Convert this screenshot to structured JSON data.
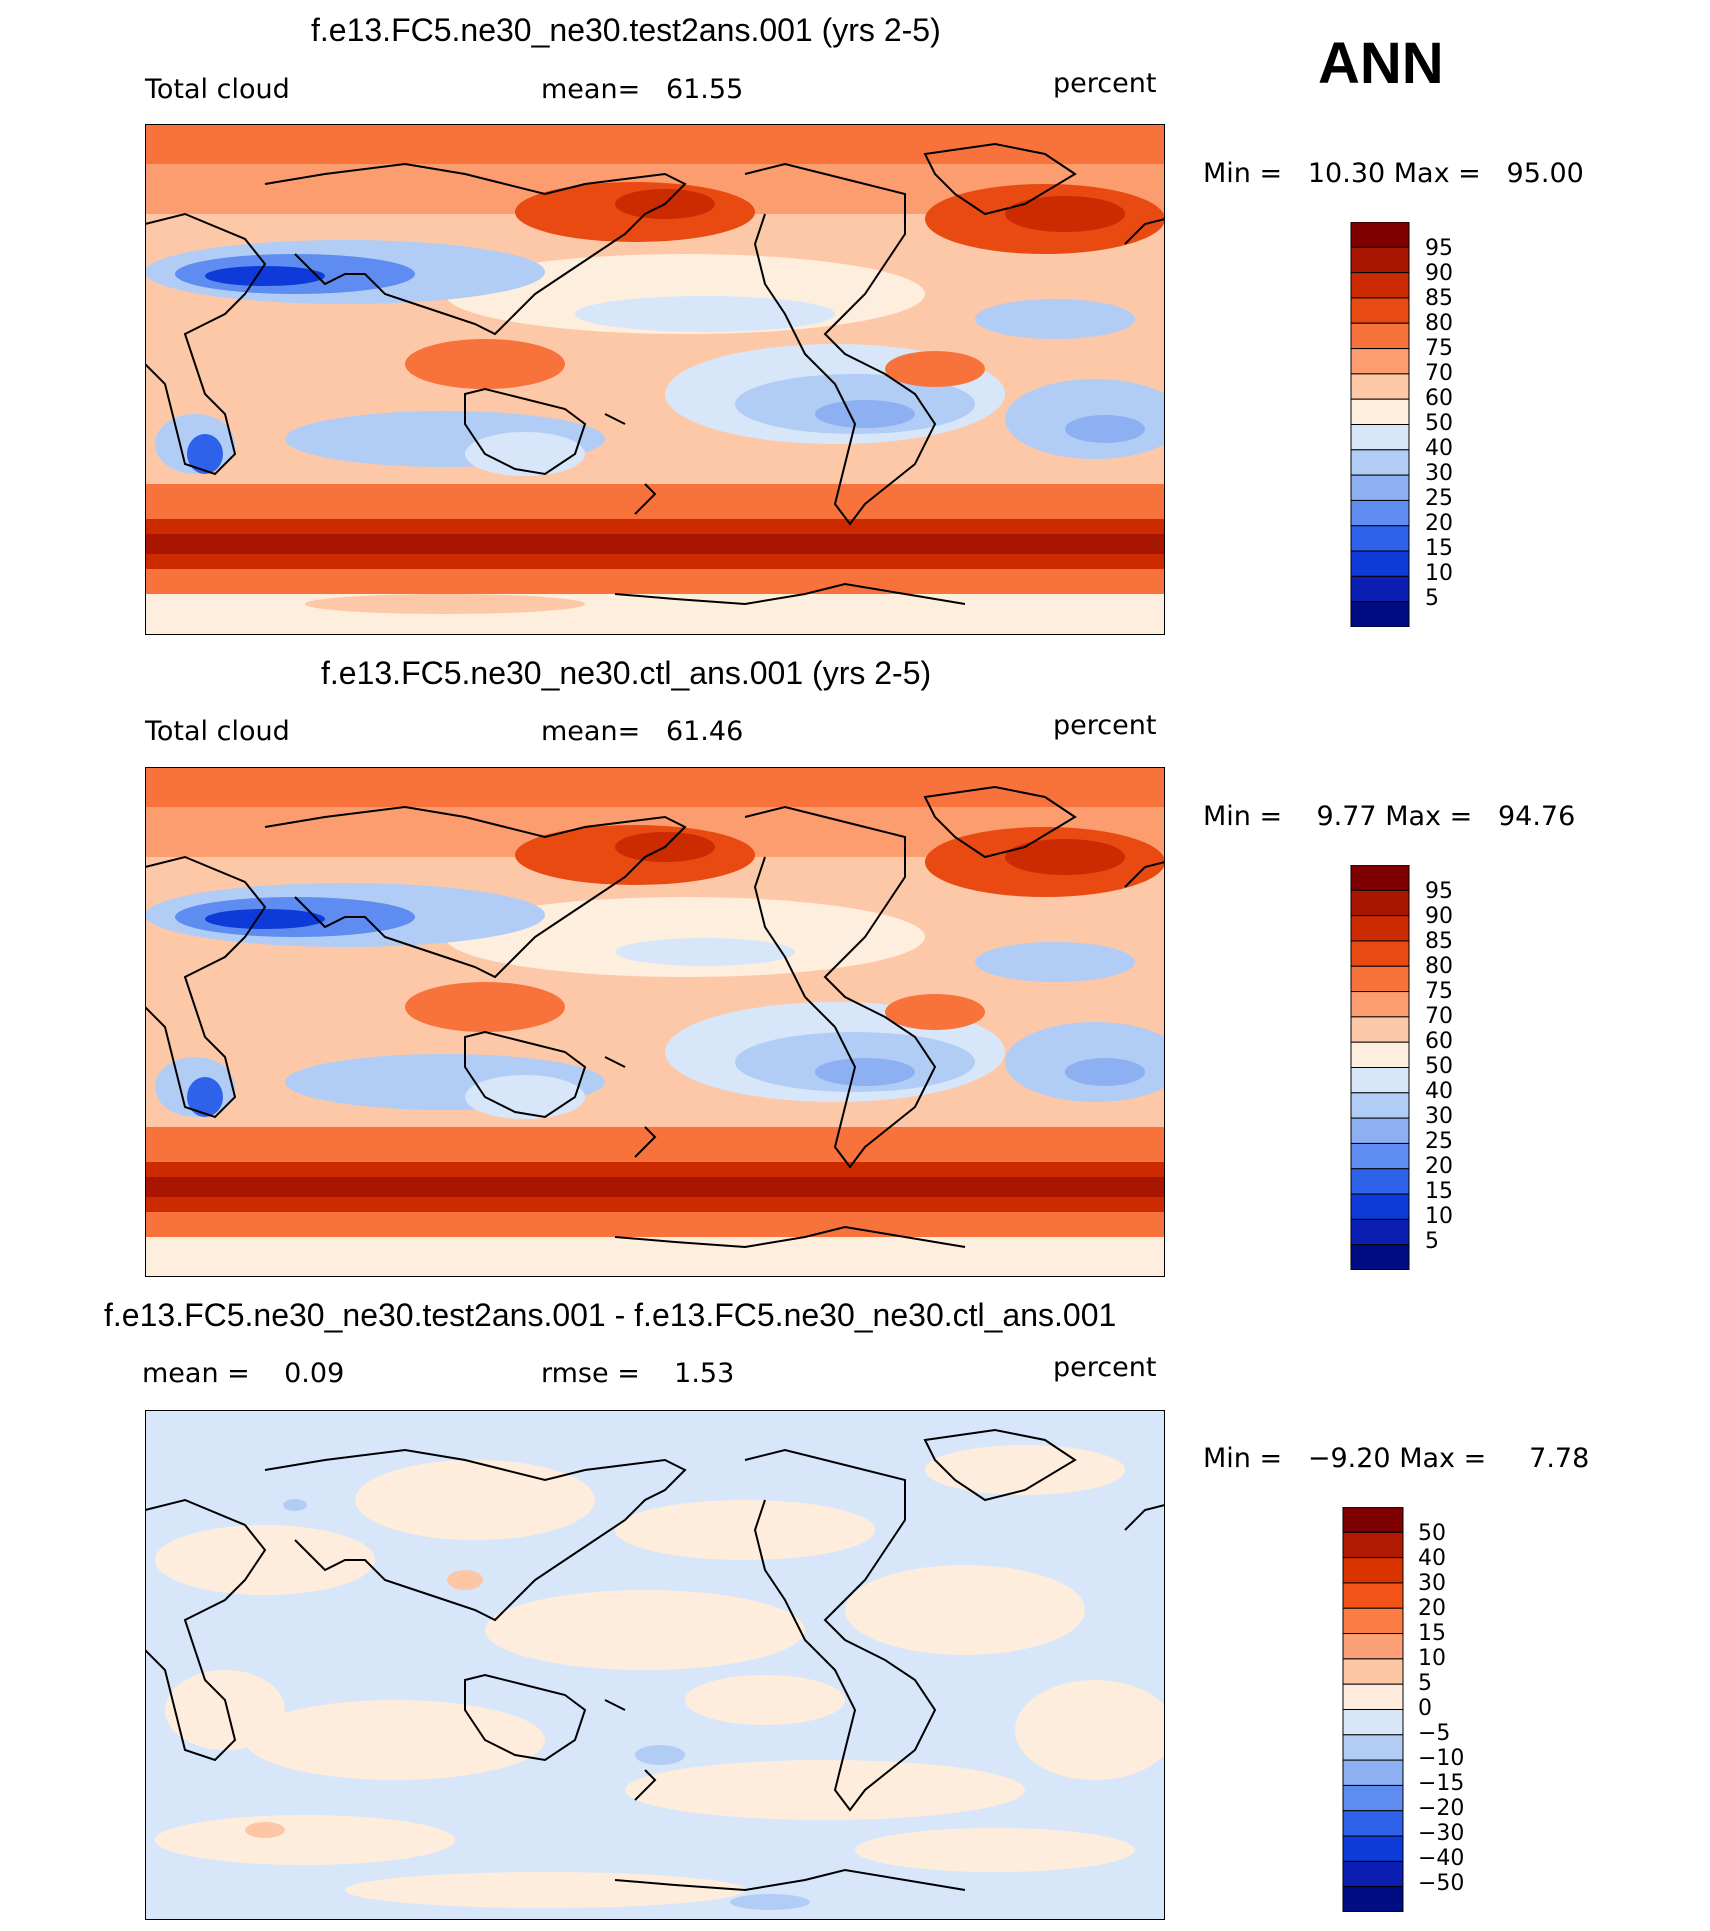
{
  "season": "ANN",
  "units": "percent",
  "panels": [
    {
      "title": "f.e13.FC5.ne30_ne30.test2ans.001 (yrs 2-5)",
      "left_label": "Total cloud",
      "mean_label": "mean=",
      "mean_value": "61.55",
      "min_label": "Min =",
      "min_value": "10.30",
      "max_label": "Max =",
      "max_value": "95.00",
      "colorbar": [
        "95",
        "90",
        "85",
        "80",
        "75",
        "70",
        "60",
        "50",
        "40",
        "30",
        "25",
        "20",
        "15",
        "10",
        "5"
      ]
    },
    {
      "title": "f.e13.FC5.ne30_ne30.ctl_ans.001 (yrs 2-5)",
      "left_label": "Total cloud",
      "mean_label": "mean=",
      "mean_value": "61.46",
      "min_label": "Min =",
      "min_value": "9.77",
      "max_label": "Max =",
      "max_value": "94.76",
      "colorbar": [
        "95",
        "90",
        "85",
        "80",
        "75",
        "70",
        "60",
        "50",
        "40",
        "30",
        "25",
        "20",
        "15",
        "10",
        "5"
      ]
    },
    {
      "title": "f.e13.FC5.ne30_ne30.test2ans.001 - f.e13.FC5.ne30_ne30.ctl_ans.001",
      "mean_label": "mean =",
      "mean_value": "0.09",
      "rmse_label": "rmse =",
      "rmse_value": "1.53",
      "min_label": "Min =",
      "min_value": "−9.20",
      "max_label": "Max =",
      "max_value": "7.78",
      "colorbar": [
        "50",
        "40",
        "30",
        "20",
        "15",
        "10",
        "5",
        "0",
        "−5",
        "−10",
        "−15",
        "−20",
        "−30",
        "−40",
        "−50"
      ]
    }
  ],
  "colors": {
    "abs_scale": [
      "#7f0000",
      "#a81500",
      "#cc2a00",
      "#e84a12",
      "#f8733c",
      "#fb9d6e",
      "#fdc8a8",
      "#feeedd",
      "#d7e7f9",
      "#b2cdf5",
      "#8cb0f2",
      "#5e8cf0",
      "#2f62ea",
      "#0d3ad8",
      "#0a1fb2",
      "#000d82"
    ],
    "diff_scale": [
      "#7f0000",
      "#b01a00",
      "#d93300",
      "#f25318",
      "#fb7c44",
      "#fca076",
      "#fdc6a5",
      "#feeddc",
      "#d7e7f9",
      "#b2cdf5",
      "#8cb0f2",
      "#5e8cf0",
      "#2f62ea",
      "#0d3ad8",
      "#0a1fb2",
      "#000d82"
    ]
  }
}
